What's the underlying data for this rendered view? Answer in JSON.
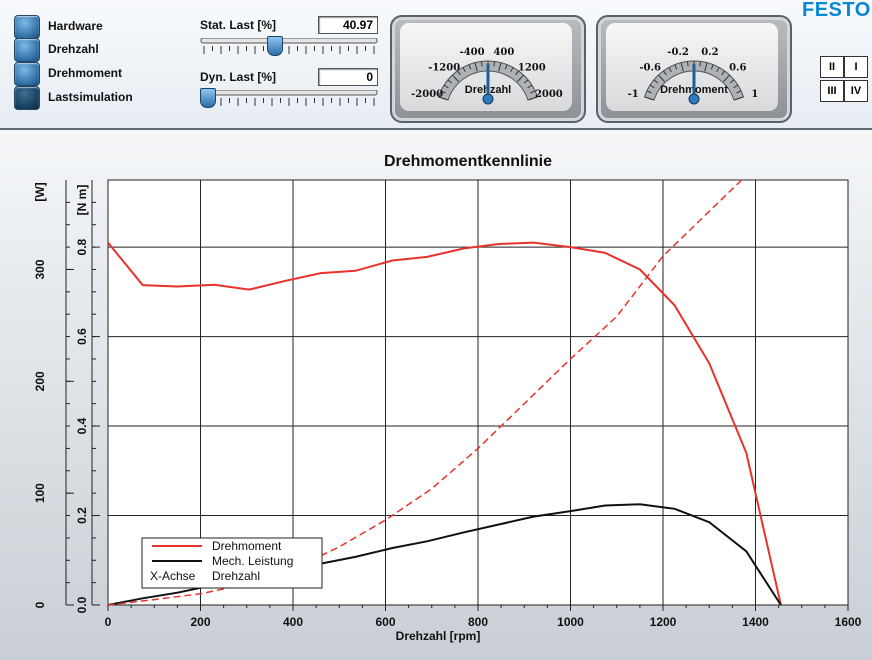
{
  "modes": [
    {
      "label": "Hardware",
      "dark": false
    },
    {
      "label": "Drehzahl",
      "dark": false
    },
    {
      "label": "Drehmoment",
      "dark": false
    },
    {
      "label": "Lastsimulation",
      "dark": true
    }
  ],
  "controls": {
    "stat_last": {
      "label": "Stat. Last [%]",
      "value": "40.97",
      "percent": 40.97
    },
    "dyn_last": {
      "label": "Dyn. Last [%]",
      "value": "0",
      "percent": 0
    }
  },
  "gauges": [
    {
      "name": "Drehzahl",
      "min": -2000,
      "max": 2000,
      "ticks": [
        "-2000",
        "-1200",
        "-400",
        "400",
        "1200",
        "2000"
      ],
      "value": 0
    },
    {
      "name": "Drehmoment",
      "min": -1,
      "max": 1,
      "ticks": [
        "-1",
        "-0.6",
        "-0.2",
        "0.2",
        "0.6",
        "1"
      ],
      "value": 0
    }
  ],
  "logo": "FESTO",
  "quadrants": [
    "II",
    "I",
    "III",
    "IV"
  ],
  "chart_data": {
    "type": "line",
    "title": "Drehmomentkennlinie",
    "xlabel": "Drehzahl [rpm]",
    "xlim": [
      0,
      1600
    ],
    "x_ticks": [
      "0",
      "200",
      "400",
      "600",
      "800",
      "1000",
      "1200",
      "1400",
      "1600"
    ],
    "y_left_torque": {
      "label": "[N m]",
      "lim": [
        0,
        0.95
      ],
      "ticks": [
        "0.0",
        "0.2",
        "0.4",
        "0.6",
        "0.8"
      ]
    },
    "y_left_power": {
      "label": "[W]",
      "lim": [
        0,
        380
      ],
      "ticks": [
        "0",
        "100",
        "200",
        "300"
      ]
    },
    "series": [
      {
        "name": "Drehmoment",
        "axis": "torque",
        "color": "#e8322b",
        "style": "solid",
        "points": [
          [
            0,
            0.81
          ],
          [
            75,
            0.715
          ],
          [
            150,
            0.712
          ],
          [
            230,
            0.716
          ],
          [
            305,
            0.705
          ],
          [
            385,
            0.725
          ],
          [
            460,
            0.742
          ],
          [
            535,
            0.747
          ],
          [
            615,
            0.77
          ],
          [
            690,
            0.778
          ],
          [
            770,
            0.797
          ],
          [
            845,
            0.807
          ],
          [
            920,
            0.81
          ],
          [
            1000,
            0.8
          ],
          [
            1075,
            0.787
          ],
          [
            1150,
            0.75
          ],
          [
            1225,
            0.67
          ],
          [
            1300,
            0.54
          ],
          [
            1380,
            0.34
          ],
          [
            1455,
            0.0
          ]
        ]
      },
      {
        "name": "Mech. Leistung",
        "axis": "power",
        "color": "#111111",
        "style": "solid",
        "points": [
          [
            0,
            0
          ],
          [
            75,
            6
          ],
          [
            150,
            11
          ],
          [
            230,
            18
          ],
          [
            305,
            24
          ],
          [
            385,
            30
          ],
          [
            460,
            37
          ],
          [
            535,
            43
          ],
          [
            615,
            51
          ],
          [
            690,
            57
          ],
          [
            770,
            65
          ],
          [
            845,
            72
          ],
          [
            920,
            79
          ],
          [
            1000,
            84
          ],
          [
            1075,
            89
          ],
          [
            1150,
            90
          ],
          [
            1225,
            86
          ],
          [
            1300,
            74
          ],
          [
            1380,
            48
          ],
          [
            1455,
            0
          ]
        ]
      },
      {
        "name": "",
        "axis": "torque",
        "color": "#e8322b",
        "style": "dashed",
        "points": [
          [
            0,
            0
          ],
          [
            100,
            0.012
          ],
          [
            200,
            0.025
          ],
          [
            300,
            0.047
          ],
          [
            400,
            0.08
          ],
          [
            500,
            0.13
          ],
          [
            600,
            0.19
          ],
          [
            700,
            0.26
          ],
          [
            800,
            0.35
          ],
          [
            900,
            0.45
          ],
          [
            1000,
            0.55
          ],
          [
            1100,
            0.645
          ],
          [
            1200,
            0.78
          ],
          [
            1300,
            0.88
          ],
          [
            1370,
            0.95
          ]
        ]
      }
    ],
    "legend": {
      "placement": "bottom-left",
      "entries": [
        {
          "label": "Drehmoment",
          "color": "#e8322b",
          "mark": "line"
        },
        {
          "label": "Mech. Leistung",
          "color": "#111111",
          "mark": "line"
        },
        {
          "label": "Drehzahl",
          "prefix": "X-Achse",
          "mark": "text"
        }
      ]
    },
    "grid": true
  }
}
